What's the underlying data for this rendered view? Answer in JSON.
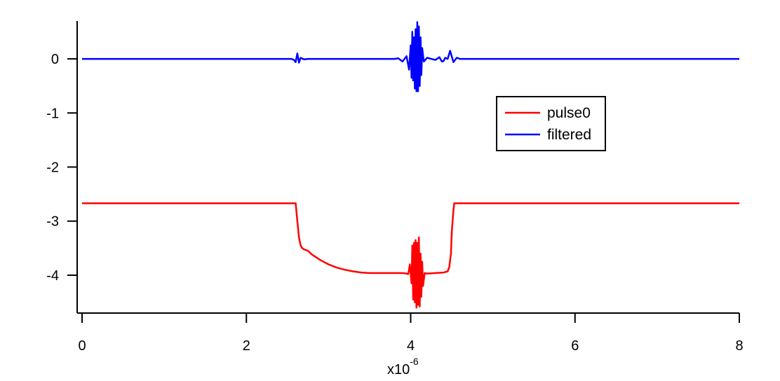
{
  "chart_data": {
    "type": "line",
    "title": "",
    "xlabel": "",
    "ylabel": "",
    "x_multiplier": "x10",
    "x_multiplier_exponent": "-6",
    "xlim": [
      0,
      8
    ],
    "ylim": [
      -4.7,
      0.7
    ],
    "xticks": [
      {
        "value": 0,
        "label": "0"
      },
      {
        "value": 2,
        "label": "2"
      },
      {
        "value": 4,
        "label": "4"
      },
      {
        "value": 6,
        "label": "6"
      },
      {
        "value": 8,
        "label": "8"
      }
    ],
    "yticks": [
      {
        "value": 0,
        "label": "0"
      },
      {
        "value": -1,
        "label": "-1"
      },
      {
        "value": -2,
        "label": "-2"
      },
      {
        "value": -3,
        "label": "-3"
      },
      {
        "value": -4,
        "label": "-4"
      }
    ],
    "grid": false,
    "legend_position": "upper-right",
    "series": [
      {
        "name": "pulse0",
        "color": "#ff0000",
        "x": [
          0,
          2.6,
          2.62,
          2.64,
          2.66,
          2.68,
          2.7,
          2.75,
          2.8,
          2.9,
          3.0,
          3.1,
          3.2,
          3.3,
          3.4,
          3.5,
          3.6,
          3.7,
          3.8,
          3.9,
          3.95,
          3.97,
          3.99,
          4.01,
          4.02,
          4.03,
          4.04,
          4.05,
          4.06,
          4.07,
          4.08,
          4.09,
          4.1,
          4.11,
          4.12,
          4.13,
          4.14,
          4.15,
          4.17,
          4.2,
          4.3,
          4.4,
          4.45,
          4.47,
          4.49,
          4.5,
          4.52,
          4.53,
          8
        ],
        "y": [
          -2.67,
          -2.67,
          -3.0,
          -3.3,
          -3.45,
          -3.5,
          -3.52,
          -3.55,
          -3.62,
          -3.72,
          -3.8,
          -3.86,
          -3.9,
          -3.93,
          -3.95,
          -3.96,
          -3.96,
          -3.96,
          -3.96,
          -3.96,
          -3.97,
          -3.98,
          -3.8,
          -4.15,
          -3.45,
          -4.45,
          -3.4,
          -4.5,
          -3.35,
          -4.6,
          -3.4,
          -4.55,
          -3.3,
          -4.58,
          -3.6,
          -4.4,
          -3.75,
          -4.2,
          -3.96,
          -3.97,
          -3.96,
          -3.95,
          -3.93,
          -3.85,
          -3.6,
          -3.2,
          -2.8,
          -2.67,
          -2.67
        ]
      },
      {
        "name": "filtered",
        "color": "#0000ff",
        "x": [
          0,
          2.55,
          2.58,
          2.6,
          2.62,
          2.64,
          2.66,
          2.7,
          2.75,
          3.8,
          3.85,
          3.9,
          3.95,
          3.98,
          4.0,
          4.01,
          4.02,
          4.03,
          4.04,
          4.05,
          4.06,
          4.07,
          4.08,
          4.09,
          4.1,
          4.11,
          4.12,
          4.13,
          4.14,
          4.16,
          4.2,
          4.25,
          4.3,
          4.35,
          4.38,
          4.4,
          4.42,
          4.45,
          4.48,
          4.52,
          4.56,
          4.6,
          8
        ],
        "y": [
          0,
          0,
          -0.02,
          -0.06,
          0.1,
          -0.07,
          0.02,
          -0.01,
          0,
          0,
          0.01,
          -0.05,
          0.05,
          -0.2,
          0.25,
          -0.35,
          0.5,
          -0.4,
          0.4,
          -0.55,
          0.55,
          -0.6,
          0.68,
          -0.6,
          0.6,
          -0.5,
          0.4,
          -0.3,
          0.2,
          -0.05,
          0.02,
          0,
          -0.02,
          0.03,
          -0.05,
          -0.04,
          0.02,
          0,
          0.15,
          -0.06,
          0.02,
          0,
          0
        ]
      }
    ]
  }
}
